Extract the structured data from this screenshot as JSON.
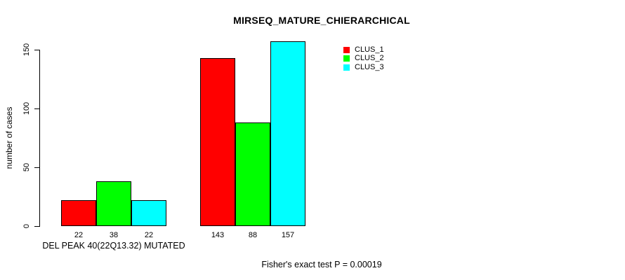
{
  "title": "MIRSEQ_MATURE_CHIERARCHICAL",
  "footer": "Fisher's exact test P = 0.00019",
  "y_axis": {
    "label": "number of cases",
    "tick_labels": [
      "0",
      "50",
      "100",
      "150"
    ]
  },
  "x_axis": {
    "group_labels": [
      "DEL PEAK 40(22Q13.32) MUTATED",
      ""
    ]
  },
  "legend": {
    "items": [
      {
        "label": "CLUS_1",
        "color": "#ff0000"
      },
      {
        "label": "CLUS_2",
        "color": "#00ff00"
      },
      {
        "label": "CLUS_3",
        "color": "#00ffff"
      }
    ]
  },
  "chart_data": {
    "type": "bar",
    "title": "MIRSEQ_MATURE_CHIERARCHICAL",
    "xlabel": "DEL PEAK 40(22Q13.32) MUTATED",
    "ylabel": "number of cases",
    "categories": [
      "DEL PEAK 40(22Q13.32) MUTATED",
      ""
    ],
    "series": [
      {
        "name": "CLUS_1",
        "color": "#ff0000",
        "values": [
          22,
          143
        ]
      },
      {
        "name": "CLUS_2",
        "color": "#00ff00",
        "values": [
          38,
          88
        ]
      },
      {
        "name": "CLUS_3",
        "color": "#00ffff",
        "values": [
          22,
          157
        ]
      }
    ],
    "yticks": [
      0,
      50,
      100,
      150
    ],
    "ylim": [
      0,
      157
    ],
    "grid": false,
    "legend_position": "top-right",
    "bar_value_labels": [
      [
        22,
        38,
        22
      ],
      [
        143,
        88,
        157
      ]
    ],
    "annotation": "Fisher's exact test P = 0.00019"
  }
}
